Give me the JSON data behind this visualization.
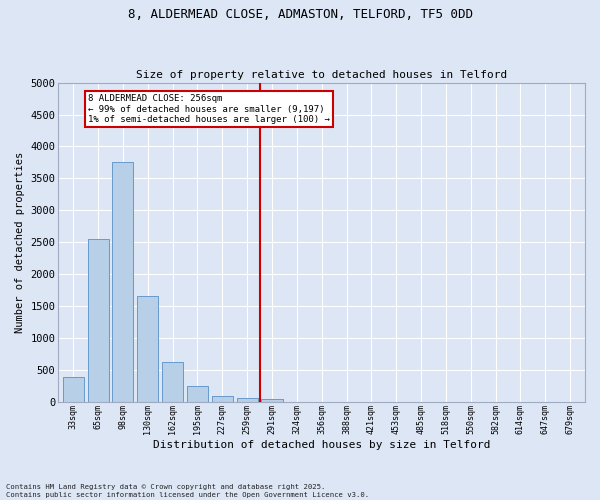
{
  "title1": "8, ALDERMEAD CLOSE, ADMASTON, TELFORD, TF5 0DD",
  "title2": "Size of property relative to detached houses in Telford",
  "xlabel": "Distribution of detached houses by size in Telford",
  "ylabel": "Number of detached properties",
  "bar_labels": [
    "33sqm",
    "65sqm",
    "98sqm",
    "130sqm",
    "162sqm",
    "195sqm",
    "227sqm",
    "259sqm",
    "291sqm",
    "324sqm",
    "356sqm",
    "388sqm",
    "421sqm",
    "453sqm",
    "485sqm",
    "518sqm",
    "550sqm",
    "582sqm",
    "614sqm",
    "647sqm",
    "679sqm"
  ],
  "bar_values": [
    380,
    2550,
    3750,
    1650,
    620,
    240,
    90,
    50,
    40,
    0,
    0,
    0,
    0,
    0,
    0,
    0,
    0,
    0,
    0,
    0,
    0
  ],
  "bar_color": "#b8cfe8",
  "bar_edgecolor": "#6699cc",
  "vline_x": 7.5,
  "vline_color": "#cc0000",
  "ylim": [
    0,
    5000
  ],
  "yticks": [
    0,
    500,
    1000,
    1500,
    2000,
    2500,
    3000,
    3500,
    4000,
    4500,
    5000
  ],
  "annotation_title": "8 ALDERMEAD CLOSE: 256sqm",
  "annotation_line1": "← 99% of detached houses are smaller (9,197)",
  "annotation_line2": "1% of semi-detached houses are larger (100) →",
  "annotation_box_color": "#cc0000",
  "bg_color": "#dce6f5",
  "fig_bg_color": "#dce6f5",
  "grid_color": "#ffffff",
  "footer1": "Contains HM Land Registry data © Crown copyright and database right 2025.",
  "footer2": "Contains public sector information licensed under the Open Government Licence v3.0."
}
